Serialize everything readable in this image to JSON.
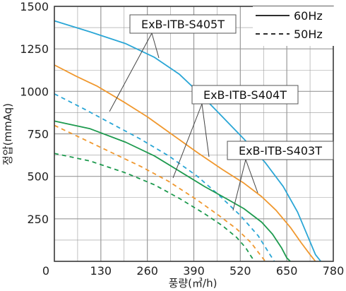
{
  "chart_data": {
    "type": "line",
    "xlabel": "풍량(㎥/h)",
    "ylabel": "정압(mmAq)",
    "xlim": [
      0,
      780
    ],
    "ylim": [
      0,
      1500
    ],
    "x_ticks": [
      0,
      130,
      260,
      390,
      520,
      650,
      780
    ],
    "y_ticks": [
      0,
      250,
      500,
      750,
      1000,
      1250,
      1500
    ],
    "grid": true,
    "legend": {
      "placement": "top-right",
      "entries": [
        {
          "label": "60Hz",
          "style": "solid"
        },
        {
          "label": "50Hz",
          "style": "dashed"
        }
      ]
    },
    "colors": {
      "S405T": "#2aa6d6",
      "S404T": "#f0982e",
      "S403T": "#1d9a4e",
      "grid": "#999999",
      "axis": "#333333"
    },
    "callouts": [
      {
        "label": "ExB-ITB-S405T"
      },
      {
        "label": "ExB-ITB-S404T"
      },
      {
        "label": "ExB-ITB-S403T"
      }
    ],
    "series": [
      {
        "model": "S405T",
        "freq": "60Hz",
        "style": "solid",
        "color": "#2aa6d6",
        "x": [
          0,
          100,
          200,
          280,
          350,
          410,
          470,
          530,
          590,
          640,
          680,
          710,
          730,
          745
        ],
        "y": [
          1415,
          1350,
          1280,
          1200,
          1100,
          980,
          850,
          720,
          580,
          440,
          290,
          140,
          40,
          0
        ]
      },
      {
        "model": "S405T",
        "freq": "50Hz",
        "style": "dashed",
        "color": "#2aa6d6",
        "x": [
          0,
          80,
          160,
          240,
          320,
          400,
          460,
          520,
          570,
          600,
          615
        ],
        "y": [
          985,
          900,
          810,
          720,
          620,
          500,
          390,
          270,
          150,
          50,
          0
        ]
      },
      {
        "model": "S404T",
        "freq": "60Hz",
        "style": "solid",
        "color": "#f0982e",
        "x": [
          0,
          60,
          120,
          200,
          260,
          320,
          400,
          470,
          530,
          580,
          620,
          660,
          690,
          715,
          730
        ],
        "y": [
          1155,
          1090,
          1030,
          930,
          850,
          760,
          640,
          540,
          460,
          380,
          300,
          200,
          110,
          40,
          0
        ]
      },
      {
        "model": "S404T",
        "freq": "50Hz",
        "style": "dashed",
        "color": "#f0982e",
        "x": [
          0,
          80,
          160,
          240,
          320,
          400,
          460,
          510,
          550,
          575,
          590
        ],
        "y": [
          800,
          720,
          640,
          560,
          470,
          360,
          270,
          190,
          110,
          40,
          0
        ]
      },
      {
        "model": "S403T",
        "freq": "60Hz",
        "style": "solid",
        "color": "#1d9a4e",
        "x": [
          0,
          100,
          200,
          280,
          350,
          420,
          480,
          530,
          580,
          610,
          635,
          650,
          660
        ],
        "y": [
          825,
          780,
          700,
          620,
          530,
          440,
          370,
          310,
          230,
          160,
          80,
          20,
          0
        ]
      },
      {
        "model": "S403T",
        "freq": "50Hz",
        "style": "dashed",
        "color": "#1d9a4e",
        "x": [
          0,
          100,
          200,
          280,
          350,
          420,
          470,
          510,
          535,
          550,
          560
        ],
        "y": [
          635,
          590,
          520,
          450,
          370,
          280,
          210,
          140,
          80,
          30,
          0
        ]
      }
    ]
  }
}
